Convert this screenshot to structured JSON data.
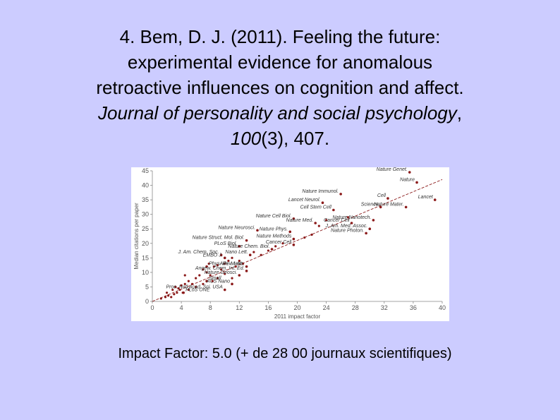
{
  "slide": {
    "title_line1": "4. Bem, D. J. (2011). Feeling the future:",
    "title_line2": "experimental evidence for anomalous",
    "title_line3": "retroactive influences on cognition and affect.",
    "title_journal": "Journal of personality and social psychology",
    "title_sep": ",",
    "title_volume": "100",
    "title_issue_pages": "(3), 407.",
    "caption": "Impact Factor: 5.0 (+ de 28 00 journaux scientifiques)"
  },
  "colors": {
    "background": "#ccccff",
    "point": "#8b1a1a",
    "trend": "#8b1a1a",
    "axis_text": "#555555"
  },
  "chart_data": {
    "type": "scatter",
    "xlabel": "2011 impact factor",
    "ylabel": "Median citations per paper",
    "xlim": [
      0,
      40
    ],
    "ylim": [
      0,
      45
    ],
    "x_ticks": [
      "0",
      "4",
      "8",
      "12",
      "16",
      "20",
      "24",
      "28",
      "32",
      "36",
      "40"
    ],
    "y_ticks": [
      "0",
      "5",
      "10",
      "15",
      "20",
      "25",
      "30",
      "35",
      "40",
      "45"
    ],
    "grid": false,
    "trend_line": {
      "x": [
        0,
        40
      ],
      "y": [
        0,
        42
      ]
    },
    "labeled_points": [
      {
        "label": "Nature Genet.",
        "x": 35.5,
        "y": 44.5
      },
      {
        "label": "Nature",
        "x": 36.5,
        "y": 41
      },
      {
        "label": "Cell",
        "x": 32.5,
        "y": 35.5
      },
      {
        "label": "Lancet",
        "x": 39,
        "y": 35
      },
      {
        "label": "Nature Mater.",
        "x": 35,
        "y": 32.5
      },
      {
        "label": "Science",
        "x": 31.5,
        "y": 32.5
      },
      {
        "label": "Nature Immunol.",
        "x": 26,
        "y": 37
      },
      {
        "label": "Lancet Neurol.",
        "x": 23.5,
        "y": 34
      },
      {
        "label": "Cell Stem Cell",
        "x": 25,
        "y": 31.5
      },
      {
        "label": "Nature Cell Biol.",
        "x": 19.5,
        "y": 28.5
      },
      {
        "label": "Nature Med.",
        "x": 22.5,
        "y": 27
      },
      {
        "label": "Nature Nanotech.",
        "x": 30.5,
        "y": 28
      },
      {
        "label": "Cancer Cell",
        "x": 27.5,
        "y": 27
      },
      {
        "label": "Nature Neurosci.",
        "x": 14.5,
        "y": 24.5
      },
      {
        "label": "Nature Phys.",
        "x": 19,
        "y": 24
      },
      {
        "label": "Nature Photon.",
        "x": 29.5,
        "y": 23.5
      },
      {
        "label": "J. Am. Med. Assoc.",
        "x": 30,
        "y": 25
      },
      {
        "label": "Nature Methods",
        "x": 19.5,
        "y": 21.5
      },
      {
        "label": "Nature Struct. Mol. Biol.",
        "x": 13,
        "y": 21
      },
      {
        "label": "Cancer Cell",
        "x": 19.5,
        "y": 19.5
      },
      {
        "label": "PLoS Biol.",
        "x": 12,
        "y": 19
      },
      {
        "label": "Nature Chem. Biol.",
        "x": 16.5,
        "y": 18
      },
      {
        "label": "J. Am. Chem. Soc.",
        "x": 9.5,
        "y": 16
      },
      {
        "label": "EMBO J.",
        "x": 10,
        "y": 15
      },
      {
        "label": "Nano Lett.",
        "x": 13.5,
        "y": 16
      },
      {
        "label": "Adv. Mater.",
        "x": 13,
        "y": 12
      },
      {
        "label": "Phys. Rev. Lett.",
        "x": 7.5,
        "y": 12
      },
      {
        "label": "Angew. Chem. Int. Ed.",
        "x": 13,
        "y": 10.5
      },
      {
        "label": "Nature Geosci.",
        "x": 12,
        "y": 9
      },
      {
        "label": "Small",
        "x": 7.5,
        "y": 7
      },
      {
        "label": "ACS Nano",
        "x": 11,
        "y": 6
      },
      {
        "label": "PLoS ONE",
        "x": 4.3,
        "y": 3
      },
      {
        "label": "Proc. Natl Acad. Sci. USA",
        "x": 10,
        "y": 4
      }
    ],
    "unlabeled_points": [
      [
        1.2,
        1
      ],
      [
        1.8,
        1.5
      ],
      [
        2.2,
        2
      ],
      [
        2.6,
        1.5
      ],
      [
        3,
        2.5
      ],
      [
        3.4,
        3
      ],
      [
        3.8,
        4
      ],
      [
        4.2,
        3
      ],
      [
        2,
        3
      ],
      [
        2.8,
        4
      ],
      [
        3.2,
        5
      ],
      [
        3.6,
        4.5
      ],
      [
        4,
        5.5
      ],
      [
        4.5,
        6
      ],
      [
        5,
        7
      ],
      [
        5.5,
        6
      ],
      [
        6,
        8
      ],
      [
        6.5,
        9
      ],
      [
        7,
        11
      ],
      [
        7.5,
        10
      ],
      [
        8,
        9
      ],
      [
        8.5,
        12
      ],
      [
        9,
        12.5
      ],
      [
        9.5,
        11
      ],
      [
        10,
        13
      ],
      [
        10.5,
        14
      ],
      [
        11,
        15
      ],
      [
        11.5,
        12
      ],
      [
        12,
        14
      ],
      [
        12.5,
        13
      ],
      [
        14,
        17
      ],
      [
        15,
        16
      ],
      [
        16,
        17.5
      ],
      [
        17,
        19
      ],
      [
        18,
        20
      ],
      [
        21,
        22
      ],
      [
        22,
        23
      ],
      [
        23,
        26
      ],
      [
        24,
        28
      ],
      [
        27,
        29
      ],
      [
        6,
        5
      ],
      [
        7,
        6
      ],
      [
        8.3,
        7
      ],
      [
        9,
        8
      ],
      [
        10,
        9.5
      ],
      [
        11,
        8
      ],
      [
        5,
        4
      ],
      [
        4.5,
        9
      ],
      [
        7.8,
        13
      ]
    ]
  }
}
